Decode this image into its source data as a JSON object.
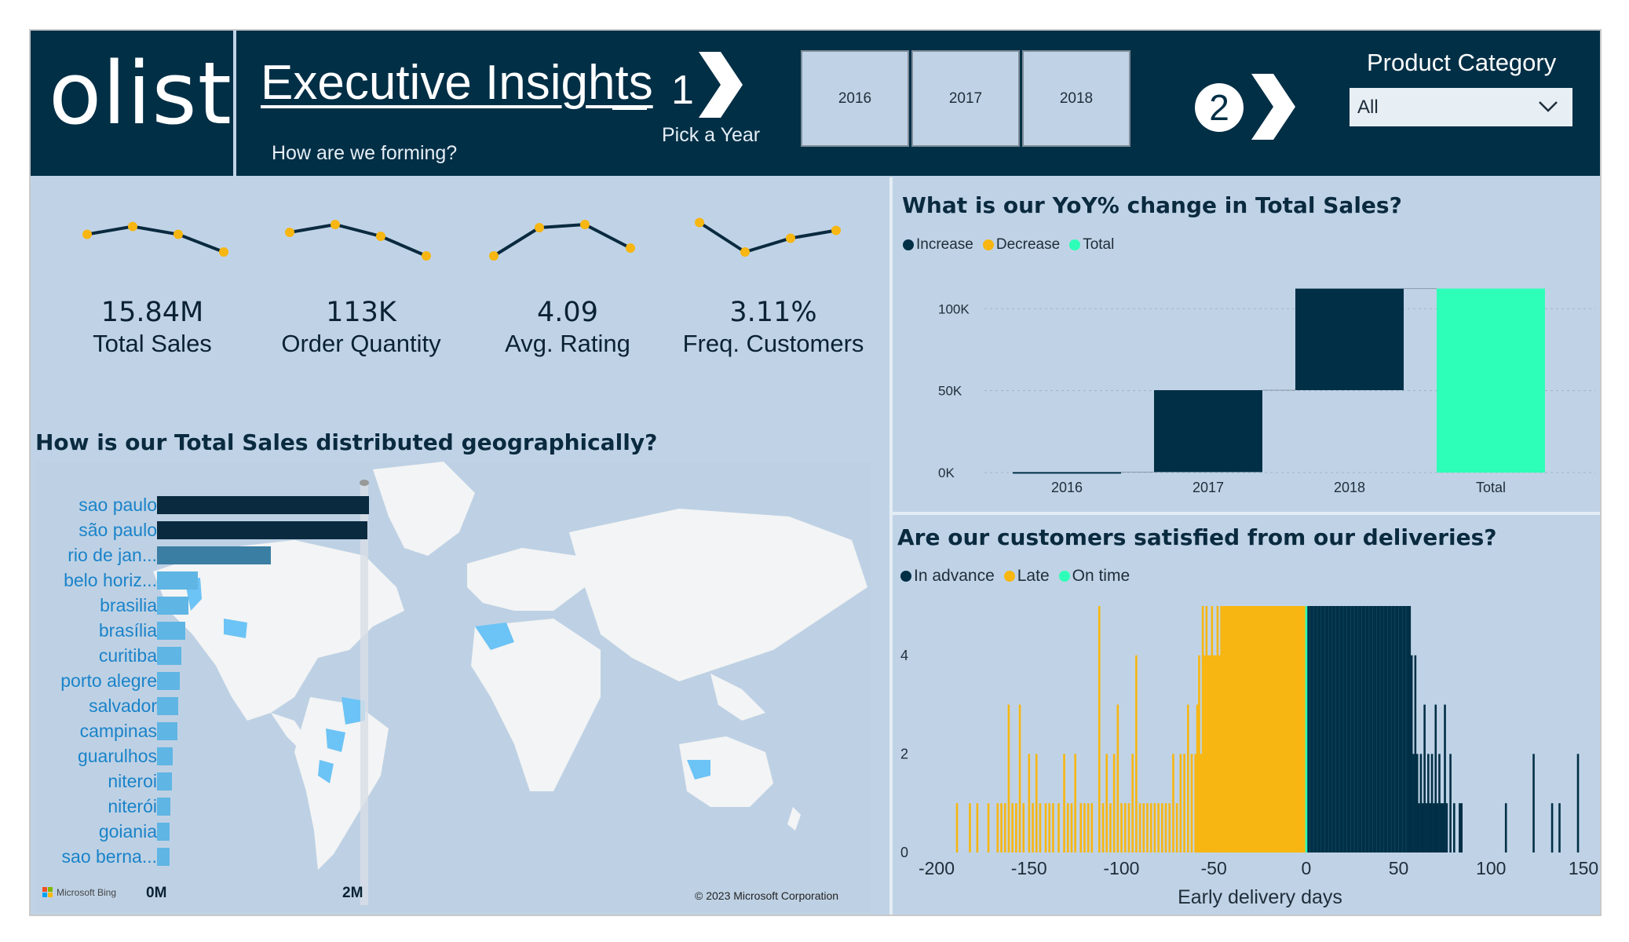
{
  "header": {
    "logo": "olist",
    "title": "Executive Insights",
    "subtitle": "How are we forming?",
    "step1_number": "1",
    "step1_label": "Pick a Year",
    "years": [
      "2016",
      "2017",
      "2018"
    ],
    "step2_number": "2",
    "product_category_label": "Product Category",
    "product_category_value": "All"
  },
  "kpis": [
    {
      "value": "15.84M",
      "label": "Total Sales"
    },
    {
      "value": "113K",
      "label": "Order Quantity"
    },
    {
      "value": "4.09",
      "label": "Avg. Rating"
    },
    {
      "value": "3.11%",
      "label": "Freq. Customers"
    }
  ],
  "geo": {
    "title": "How is our Total Sales distributed geographically?",
    "axis_min": "0M",
    "axis_max": "2M",
    "bing_label": "Microsoft Bing",
    "copyright": "© 2023 Microsoft Corporation"
  },
  "yoy": {
    "title": "What is our YoY% change in Total Sales?",
    "legend": [
      "Increase",
      "Decrease",
      "Total"
    ]
  },
  "delivery": {
    "title": "Are our customers satisfied from our deliveries?",
    "legend": [
      "In advance",
      "Late",
      "On time"
    ]
  },
  "colors": {
    "navy": "#002f46",
    "increase": "#002f46",
    "decrease": "#f7b611",
    "total": "#2effb8",
    "panel": "#c0d3e6",
    "bar_blue_dark": "#0a2a3f",
    "bar_blue_mid": "#3b7ea3",
    "bar_blue_light": "#5fb5e3",
    "city_text": "#1a83c9"
  },
  "chart_data": [
    {
      "type": "bar",
      "title": "How is our Total Sales distributed geographically?",
      "orientation": "horizontal",
      "categories": [
        "sao paulo",
        "são paulo",
        "rio de jan...",
        "belo horiz...",
        "brasilia",
        "brasília",
        "curitiba",
        "porto alegre",
        "salvador",
        "campinas",
        "guarulhos",
        "niteroi",
        "niterói",
        "goiania",
        "sao berna..."
      ],
      "values": [
        2.18,
        2.16,
        1.17,
        0.42,
        0.32,
        0.29,
        0.25,
        0.23,
        0.22,
        0.21,
        0.16,
        0.15,
        0.14,
        0.13,
        0.13
      ],
      "xlabel": "",
      "xlim": [
        0,
        2.2
      ],
      "tick_labels": [
        "0M",
        "2M"
      ]
    },
    {
      "type": "bar",
      "subtype": "waterfall",
      "title": "What is our YoY% change in Total Sales?",
      "categories": [
        "2016",
        "2017",
        "2018",
        "Total"
      ],
      "series": [
        {
          "name": "Increase",
          "values": [
            300,
            50000,
            62000,
            null
          ]
        },
        {
          "name": "Total",
          "values": [
            null,
            null,
            null,
            112300
          ]
        }
      ],
      "ylim": [
        0,
        115000
      ],
      "yticks": [
        "0K",
        "50K",
        "100K"
      ],
      "legend": [
        "Increase",
        "Decrease",
        "Total"
      ]
    },
    {
      "type": "bar",
      "subtype": "histogram",
      "title": "Are our customers satisfied from our deliveries?",
      "xlabel": "Early delivery days",
      "xlim": [
        -200,
        150
      ],
      "ylim": [
        0,
        5
      ],
      "xticks": [
        -200,
        -150,
        -100,
        -50,
        0,
        50,
        100,
        150
      ],
      "yticks": [
        0,
        2,
        4
      ],
      "legend": [
        "In advance",
        "Late",
        "On time"
      ],
      "late_bars": [
        [
          -189,
          1
        ],
        [
          -182,
          1
        ],
        [
          -178,
          1
        ],
        [
          -172,
          1
        ],
        [
          -167,
          1
        ],
        [
          -165,
          1
        ],
        [
          -163,
          1
        ],
        [
          -161,
          3
        ],
        [
          -159,
          1
        ],
        [
          -157,
          1
        ],
        [
          -155,
          3
        ],
        [
          -153,
          1
        ],
        [
          -150,
          2
        ],
        [
          -148,
          1
        ],
        [
          -146,
          2
        ],
        [
          -144,
          1
        ],
        [
          -141,
          1
        ],
        [
          -139,
          1
        ],
        [
          -137,
          1
        ],
        [
          -134,
          1
        ],
        [
          -131,
          2
        ],
        [
          -129,
          1
        ],
        [
          -127,
          1
        ],
        [
          -125,
          2
        ],
        [
          -122,
          1
        ],
        [
          -120,
          1
        ],
        [
          -118,
          1
        ],
        [
          -116,
          1
        ],
        [
          -112,
          5
        ],
        [
          -110,
          1
        ],
        [
          -108,
          2
        ],
        [
          -106,
          1
        ],
        [
          -104,
          2
        ],
        [
          -102,
          3
        ],
        [
          -100,
          1
        ],
        [
          -98,
          1
        ],
        [
          -96,
          1
        ],
        [
          -94,
          2
        ],
        [
          -92,
          4
        ],
        [
          -90,
          1
        ],
        [
          -88,
          1
        ],
        [
          -86,
          1
        ],
        [
          -84,
          1
        ],
        [
          -82,
          1
        ],
        [
          -80,
          1
        ],
        [
          -78,
          1
        ],
        [
          -76,
          1
        ],
        [
          -74,
          1
        ],
        [
          -72,
          2
        ],
        [
          -70,
          1
        ],
        [
          -68,
          2
        ],
        [
          -66,
          2
        ],
        [
          -64,
          3
        ],
        [
          -62,
          2
        ],
        [
          -60,
          2
        ],
        [
          -59,
          3
        ],
        [
          -58,
          4
        ],
        [
          -57,
          2
        ],
        [
          -56,
          5
        ],
        [
          -55,
          4
        ],
        [
          -54,
          5
        ],
        [
          -53,
          4
        ],
        [
          -52,
          4
        ],
        [
          -51,
          5
        ],
        [
          -50,
          4
        ],
        [
          -49,
          4
        ],
        [
          -48,
          5
        ],
        [
          -47,
          4
        ],
        [
          -46,
          5
        ],
        [
          -45,
          5
        ],
        [
          -44,
          5
        ],
        [
          -43,
          5
        ],
        [
          -42,
          5
        ],
        [
          -41,
          5
        ],
        [
          -40,
          5
        ],
        [
          -38,
          5
        ],
        [
          -36,
          5
        ],
        [
          -34,
          5
        ],
        [
          -32,
          5
        ],
        [
          -30,
          5
        ],
        [
          -28,
          5
        ],
        [
          -26,
          5
        ],
        [
          -24,
          5
        ],
        [
          -22,
          5
        ],
        [
          -20,
          5
        ],
        [
          -18,
          5
        ],
        [
          -16,
          5
        ],
        [
          -14,
          5
        ],
        [
          -12,
          5
        ],
        [
          -10,
          5
        ],
        [
          -8,
          5
        ],
        [
          -6,
          5
        ],
        [
          -4,
          5
        ],
        [
          -2,
          5
        ]
      ],
      "on_time_bars": [
        [
          0,
          5
        ]
      ],
      "advance_bars": [
        [
          1,
          5
        ],
        [
          2,
          5
        ],
        [
          4,
          5
        ],
        [
          6,
          5
        ],
        [
          8,
          5
        ],
        [
          10,
          5
        ],
        [
          12,
          5
        ],
        [
          14,
          5
        ],
        [
          16,
          5
        ],
        [
          18,
          5
        ],
        [
          20,
          5
        ],
        [
          22,
          5
        ],
        [
          24,
          5
        ],
        [
          26,
          5
        ],
        [
          28,
          5
        ],
        [
          30,
          5
        ],
        [
          32,
          5
        ],
        [
          34,
          5
        ],
        [
          36,
          5
        ],
        [
          38,
          5
        ],
        [
          40,
          5
        ],
        [
          42,
          5
        ],
        [
          44,
          5
        ],
        [
          46,
          5
        ],
        [
          48,
          5
        ],
        [
          50,
          5
        ],
        [
          52,
          5
        ],
        [
          54,
          5
        ],
        [
          56,
          5
        ],
        [
          57,
          4
        ],
        [
          58,
          2
        ],
        [
          59,
          4
        ],
        [
          60,
          2
        ],
        [
          61,
          1
        ],
        [
          62,
          2
        ],
        [
          63,
          1
        ],
        [
          64,
          3
        ],
        [
          65,
          1
        ],
        [
          66,
          2
        ],
        [
          67,
          1
        ],
        [
          68,
          2
        ],
        [
          69,
          1
        ],
        [
          70,
          3
        ],
        [
          71,
          1
        ],
        [
          72,
          2
        ],
        [
          73,
          1
        ],
        [
          74,
          1
        ],
        [
          75,
          3
        ],
        [
          76,
          1
        ],
        [
          78,
          2
        ],
        [
          80,
          1
        ],
        [
          83,
          1
        ],
        [
          84,
          1
        ],
        [
          108,
          1
        ],
        [
          123,
          2
        ],
        [
          133,
          1
        ],
        [
          137,
          1
        ],
        [
          147,
          2
        ]
      ]
    }
  ],
  "sparklines": [
    [
      0.55,
      0.75,
      0.55,
      0.1
    ],
    [
      0.6,
      0.8,
      0.5,
      0.0
    ],
    [
      0.0,
      0.72,
      0.8,
      0.2
    ],
    [
      0.85,
      0.1,
      0.45,
      0.65
    ]
  ]
}
